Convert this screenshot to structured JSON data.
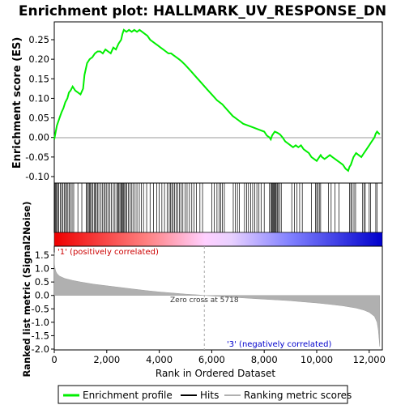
{
  "chart_data": [
    {
      "type": "line",
      "title": "Enrichment plot: HALLMARK_UV_RESPONSE_DN",
      "ylabel": "Enrichment score (ES)",
      "ylim": [
        -0.1,
        0.29
      ],
      "xlim": [
        0,
        12500
      ],
      "yticks": [
        "0.25",
        "0.20",
        "0.15",
        "0.10",
        "0.05",
        "0.00",
        "-0.05",
        "-0.10"
      ],
      "ytick_values": [
        0.25,
        0.2,
        0.15,
        0.1,
        0.05,
        0.0,
        -0.05,
        -0.1
      ],
      "grid": false,
      "color": "#00ee00",
      "series": [
        {
          "name": "Enrichment profile",
          "x": [
            0,
            100,
            200,
            280,
            350,
            420,
            500,
            560,
            620,
            700,
            800,
            900,
            1000,
            1100,
            1150,
            1250,
            1350,
            1450,
            1550,
            1650,
            1750,
            1850,
            1950,
            2050,
            2150,
            2250,
            2350,
            2450,
            2550,
            2600,
            2650,
            2750,
            2850,
            2950,
            3050,
            3150,
            3250,
            3350,
            3450,
            3550,
            3650,
            3750,
            3850,
            3950,
            4050,
            4150,
            4250,
            4350,
            4450,
            4550,
            4650,
            4750,
            4850,
            5000,
            5200,
            5400,
            5600,
            5800,
            6000,
            6200,
            6400,
            6600,
            6800,
            7000,
            7200,
            7400,
            7600,
            7800,
            8000,
            8100,
            8200,
            8250,
            8300,
            8350,
            8400,
            8500,
            8600,
            8700,
            8800,
            8900,
            9000,
            9100,
            9200,
            9300,
            9400,
            9500,
            9600,
            9700,
            9800,
            9900,
            10000,
            10050,
            10100,
            10150,
            10200,
            10300,
            10400,
            10500,
            10600,
            10700,
            10800,
            10900,
            11000,
            11100,
            11200,
            11250,
            11300,
            11400,
            11500,
            11600,
            11700,
            11800,
            11900,
            12000,
            12100,
            12200,
            12250,
            12300,
            12400
          ],
          "values": [
            -0.005,
            0.03,
            0.05,
            0.065,
            0.075,
            0.09,
            0.1,
            0.115,
            0.12,
            0.13,
            0.12,
            0.115,
            0.11,
            0.125,
            0.16,
            0.19,
            0.2,
            0.205,
            0.215,
            0.22,
            0.22,
            0.215,
            0.225,
            0.22,
            0.215,
            0.23,
            0.225,
            0.24,
            0.25,
            0.265,
            0.275,
            0.27,
            0.275,
            0.27,
            0.275,
            0.27,
            0.275,
            0.27,
            0.265,
            0.26,
            0.25,
            0.245,
            0.24,
            0.235,
            0.23,
            0.225,
            0.22,
            0.215,
            0.215,
            0.21,
            0.205,
            0.2,
            0.195,
            0.185,
            0.17,
            0.155,
            0.14,
            0.125,
            0.11,
            0.095,
            0.085,
            0.07,
            0.055,
            0.045,
            0.035,
            0.03,
            0.025,
            0.02,
            0.015,
            0.005,
            0.0,
            -0.005,
            0.005,
            0.01,
            0.015,
            0.012,
            0.008,
            0.0,
            -0.01,
            -0.015,
            -0.02,
            -0.025,
            -0.02,
            -0.025,
            -0.02,
            -0.03,
            -0.035,
            -0.04,
            -0.05,
            -0.055,
            -0.06,
            -0.055,
            -0.05,
            -0.045,
            -0.05,
            -0.055,
            -0.05,
            -0.045,
            -0.05,
            -0.055,
            -0.06,
            -0.065,
            -0.07,
            -0.08,
            -0.085,
            -0.075,
            -0.07,
            -0.05,
            -0.04,
            -0.045,
            -0.05,
            -0.04,
            -0.03,
            -0.02,
            -0.01,
            0.0,
            0.01,
            0.015,
            0.008
          ]
        }
      ]
    },
    {
      "type": "scatter",
      "series": [
        {
          "name": "Hits",
          "x": [
            30,
            60,
            90,
            130,
            170,
            230,
            280,
            330,
            380,
            430,
            470,
            520,
            570,
            620,
            680,
            740,
            900,
            1050,
            1220,
            1260,
            1300,
            1340,
            1380,
            1420,
            1470,
            1520,
            1560,
            1600,
            1650,
            1700,
            1780,
            1830,
            1890,
            1940,
            2000,
            2060,
            2120,
            2180,
            2250,
            2310,
            2380,
            2420,
            2460,
            2500,
            2540,
            2570,
            2600,
            2640,
            2680,
            2720,
            2760,
            2820,
            2880,
            2940,
            3000,
            3080,
            3150,
            3240,
            3320,
            3400,
            3520,
            3650,
            3780,
            3900,
            4000,
            4100,
            4200,
            4300,
            4380,
            4430,
            4480,
            4530,
            4580,
            4640,
            4700,
            4770,
            4830,
            4900,
            4980,
            5060,
            5150,
            5240,
            5320,
            5420,
            5550,
            5650,
            6000,
            6100,
            6200,
            6280,
            6340,
            6400,
            6480,
            6820,
            6900,
            6980,
            7050,
            7250,
            7330,
            7400,
            7480,
            7560,
            7640,
            7720,
            7800,
            7880,
            8000,
            8200,
            8250,
            8280,
            8310,
            8340,
            8370,
            8400,
            8430,
            8460,
            8500,
            8540,
            8600,
            8650,
            9050,
            9150,
            9250,
            9350,
            9450,
            9800,
            9950,
            10000,
            10050,
            10100,
            10150,
            10450,
            10550,
            10700,
            10850,
            11250,
            11300,
            11350,
            11420,
            11480,
            11750,
            11800,
            11850,
            12000,
            12050,
            12250,
            12300
          ]
        },
        {
          "name": "Ranking metric scores",
          "xlabel": "Rank in Ordered Dataset",
          "ylabel": "Ranked list metric (Signal2Noise)",
          "ylim": [
            -2.0,
            1.75
          ],
          "xlim": [
            0,
            12500
          ],
          "yticks": [
            "1.5",
            "1.0",
            "0.5",
            "0.0",
            "-0.5",
            "-1.0",
            "-1.5",
            "-2.0"
          ],
          "ytick_values": [
            1.5,
            1.0,
            0.5,
            0.0,
            -0.5,
            -1.0,
            -1.5,
            -2.0
          ],
          "xticks": [
            "0",
            "2,000",
            "4,000",
            "6,000",
            "8,000",
            "10,000",
            "12,000"
          ],
          "xtick_values": [
            0,
            2000,
            4000,
            6000,
            8000,
            10000,
            12000
          ],
          "x": [
            0,
            10,
            30,
            60,
            100,
            200,
            400,
            700,
            1000,
            1500,
            2000,
            2500,
            3000,
            3500,
            4000,
            4500,
            5000,
            5500,
            5718,
            6000,
            6500,
            7000,
            7500,
            8000,
            8500,
            9000,
            9500,
            10000,
            10500,
            11000,
            11500,
            11800,
            12000,
            12200,
            12300,
            12350,
            12400
          ],
          "values": [
            1.6,
            1.15,
            1.0,
            0.9,
            0.82,
            0.72,
            0.63,
            0.56,
            0.5,
            0.42,
            0.36,
            0.3,
            0.24,
            0.18,
            0.13,
            0.09,
            0.05,
            0.02,
            0.0,
            -0.02,
            -0.05,
            -0.08,
            -0.11,
            -0.14,
            -0.17,
            -0.2,
            -0.24,
            -0.28,
            -0.33,
            -0.39,
            -0.47,
            -0.55,
            -0.63,
            -0.78,
            -1.0,
            -1.3,
            -1.9
          ]
        }
      ]
    }
  ],
  "labels": {
    "positive_label": "'1' (positively correlated)",
    "negative_label": "'3' (negatively correlated)",
    "zero_cross": "Zero cross at 5718"
  },
  "colors": {
    "profile": "#00ee00",
    "hits": "#000000",
    "metric_fill": "#b0b0b0",
    "positive_end": "#ff0000",
    "negative_end": "#0000ff",
    "positive_label": "#cc0000",
    "negative_label": "#0000cc"
  }
}
